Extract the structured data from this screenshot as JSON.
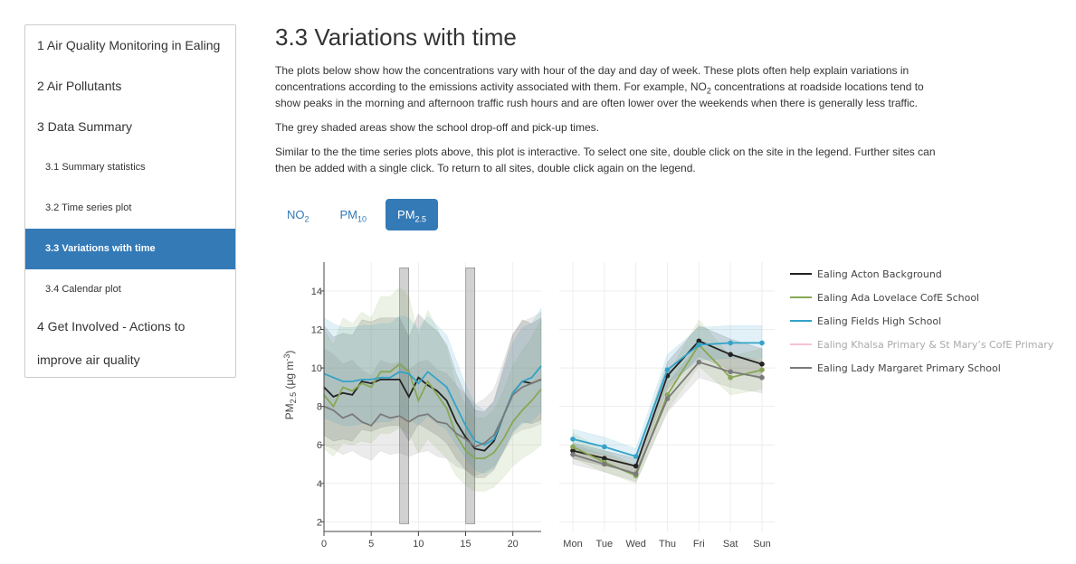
{
  "toc": [
    {
      "label": "1 Air Quality Monitoring in Ealing",
      "level": 1
    },
    {
      "label": "2 Air Pollutants",
      "level": 1
    },
    {
      "label": "3 Data Summary",
      "level": 1
    },
    {
      "label": "3.1 Summary statistics",
      "level": 2
    },
    {
      "label": "3.2 Time series plot",
      "level": 2
    },
    {
      "label": "3.3 Variations with time",
      "level": 2,
      "active": true
    },
    {
      "label": "3.4 Calendar plot",
      "level": 2
    },
    {
      "label": "4 Get Involved - Actions to improve air quality",
      "level": 1
    }
  ],
  "heading": "3.3 Variations with time",
  "para1_a": "The plots below show how the concentrations vary with hour of the day and day of week. These plots often help explain variations in concentrations according to the emissions activity associated with them. For example, NO",
  "para1_sub": "2",
  "para1_b": " concentrations at roadside locations tend to show peaks in the morning and afternoon traffic rush hours and are often lower over the weekends when there is generally less traffic.",
  "para2": "The grey shaded areas show the school drop-off and pick-up times.",
  "para3": "Similar to the the time series plots above, this plot is interactive. To select one site, double click on the site in the legend. Further sites can then be added with a single click. To return to all sites, double click again on the legend.",
  "tabs": [
    {
      "main": "NO",
      "sub": "2",
      "active": false
    },
    {
      "main": "PM",
      "sub": "10",
      "active": false
    },
    {
      "main": "PM",
      "sub": "2.5",
      "active": true
    }
  ],
  "chart_data": {
    "type": "line",
    "ylabel_main": "PM",
    "ylabel_sub": "2.5",
    "ylabel_unit": " (μg m",
    "ylabel_sup": "-3",
    "ylabel_end": ")",
    "ylim": [
      1.5,
      15.5
    ],
    "yticks": [
      2,
      4,
      6,
      8,
      10,
      12,
      14
    ],
    "hour": {
      "xlim": [
        0,
        23
      ],
      "xticks": [
        0,
        5,
        10,
        15,
        20
      ],
      "school_hours": [
        8.5,
        15.5
      ],
      "series": [
        {
          "name": "Ealing Acton Background",
          "color": "#222222",
          "values": [
            9.0,
            8.5,
            8.7,
            8.6,
            9.3,
            9.2,
            9.4,
            9.4,
            9.4,
            8.5,
            9.5,
            9.1,
            8.8,
            8.3,
            7.2,
            6.4,
            5.8,
            5.7,
            6.2,
            7.5,
            8.7,
            9.3,
            9.2,
            9.4
          ],
          "lower": [
            6.5,
            6.2,
            6.3,
            6.2,
            6.8,
            6.7,
            6.9,
            7.0,
            7.0,
            6.2,
            7.1,
            6.8,
            6.5,
            6.1,
            5.3,
            4.7,
            4.3,
            4.3,
            4.7,
            5.7,
            6.7,
            7.2,
            7.1,
            7.3
          ],
          "upper": [
            12.2,
            11.6,
            11.8,
            11.7,
            12.5,
            12.4,
            12.6,
            12.6,
            12.6,
            11.6,
            12.8,
            12.3,
            11.9,
            11.2,
            9.7,
            8.6,
            7.8,
            7.7,
            8.3,
            10.0,
            11.7,
            12.5,
            12.3,
            12.6
          ]
        },
        {
          "name": "Ealing Ada Lovelace CofE School",
          "color": "#88a755",
          "values": [
            8.6,
            8.0,
            9.0,
            8.8,
            9.2,
            9.0,
            9.8,
            9.8,
            10.2,
            9.8,
            8.3,
            9.3,
            8.6,
            7.9,
            6.5,
            5.7,
            5.3,
            5.3,
            5.6,
            6.3,
            7.2,
            7.8,
            8.3,
            8.9
          ],
          "lower": [
            5.8,
            5.4,
            6.1,
            6.0,
            6.2,
            6.1,
            6.6,
            6.6,
            6.9,
            6.6,
            5.6,
            6.3,
            5.8,
            5.3,
            4.4,
            3.9,
            3.6,
            3.6,
            3.8,
            4.3,
            4.9,
            5.3,
            5.6,
            6.0
          ],
          "upper": [
            12.0,
            11.2,
            12.6,
            12.3,
            12.9,
            12.6,
            13.7,
            13.7,
            14.2,
            13.7,
            11.6,
            13.0,
            12.0,
            11.0,
            9.1,
            8.0,
            7.4,
            7.4,
            7.8,
            8.8,
            10.1,
            10.9,
            11.6,
            12.5
          ]
        },
        {
          "name": "Ealing Fields High School",
          "color": "#33a3c8",
          "values": [
            9.7,
            9.5,
            9.3,
            9.3,
            9.4,
            9.4,
            9.5,
            9.5,
            9.8,
            9.7,
            9.2,
            9.8,
            9.4,
            9.0,
            8.0,
            7.0,
            6.2,
            6.0,
            6.3,
            7.5,
            8.7,
            9.3,
            9.5,
            10.1
          ],
          "lower": [
            7.4,
            7.2,
            7.0,
            7.0,
            7.1,
            7.1,
            7.2,
            7.2,
            7.5,
            7.4,
            7.0,
            7.5,
            7.1,
            6.8,
            6.0,
            5.3,
            4.7,
            4.5,
            4.8,
            5.7,
            6.6,
            7.1,
            7.2,
            7.7
          ],
          "upper": [
            12.6,
            12.3,
            12.1,
            12.1,
            12.2,
            12.2,
            12.3,
            12.3,
            12.7,
            12.6,
            12.0,
            12.7,
            12.2,
            11.7,
            10.4,
            9.1,
            8.1,
            7.8,
            8.2,
            9.8,
            11.3,
            12.1,
            12.3,
            13.1
          ]
        },
        {
          "name": "Ealing Lady Margaret Primary School",
          "color": "#7a7a7a",
          "values": [
            8.0,
            7.8,
            7.4,
            7.6,
            7.2,
            7.0,
            7.6,
            7.4,
            7.5,
            7.2,
            7.5,
            7.6,
            7.2,
            7.1,
            6.6,
            6.3,
            5.9,
            6.1,
            6.5,
            7.5,
            8.6,
            9.0,
            9.2,
            9.4
          ],
          "lower": [
            6.0,
            5.8,
            5.5,
            5.7,
            5.4,
            5.2,
            5.7,
            5.5,
            5.6,
            5.4,
            5.6,
            5.7,
            5.4,
            5.3,
            4.9,
            4.7,
            4.4,
            4.6,
            4.9,
            5.6,
            6.5,
            6.8,
            6.9,
            7.1
          ],
          "upper": [
            11.0,
            10.7,
            10.2,
            10.4,
            9.9,
            9.6,
            10.4,
            10.2,
            10.3,
            9.9,
            10.3,
            10.4,
            9.9,
            9.7,
            9.1,
            8.6,
            8.1,
            8.4,
            8.9,
            10.3,
            11.8,
            12.4,
            12.6,
            12.9
          ]
        }
      ]
    },
    "weekday": {
      "categories": [
        "Mon",
        "Tue",
        "Wed",
        "Thu",
        "Fri",
        "Sat",
        "Sun"
      ],
      "series": [
        {
          "name": "Ealing Acton Background",
          "color": "#222222",
          "values": [
            5.7,
            5.3,
            4.9,
            9.6,
            11.4,
            10.7,
            10.2
          ],
          "lower": [
            5.3,
            4.9,
            4.6,
            8.9,
            10.6,
            9.9,
            9.4
          ],
          "upper": [
            6.1,
            5.7,
            5.3,
            10.3,
            12.2,
            11.5,
            11.0
          ]
        },
        {
          "name": "Ealing Ada Lovelace CofE School",
          "color": "#88a755",
          "values": [
            5.9,
            5.1,
            4.4,
            8.6,
            11.2,
            9.5,
            9.9
          ],
          "lower": [
            5.3,
            4.6,
            4.0,
            7.8,
            10.1,
            8.6,
            8.9
          ],
          "upper": [
            6.6,
            5.7,
            4.9,
            9.6,
            12.5,
            10.6,
            11.0
          ]
        },
        {
          "name": "Ealing Fields High School",
          "color": "#33a3c8",
          "values": [
            6.3,
            5.9,
            5.4,
            9.9,
            11.2,
            11.3,
            11.3
          ],
          "lower": [
            5.8,
            5.5,
            5.0,
            9.2,
            10.4,
            10.5,
            10.5
          ],
          "upper": [
            6.8,
            6.4,
            5.8,
            10.7,
            12.1,
            12.2,
            12.2
          ]
        },
        {
          "name": "Ealing Lady Margaret Primary School",
          "color": "#7a7a7a",
          "values": [
            5.5,
            5.0,
            4.5,
            8.4,
            10.3,
            9.8,
            9.5
          ],
          "lower": [
            5.0,
            4.6,
            4.1,
            7.7,
            9.5,
            9.0,
            8.7
          ],
          "upper": [
            6.0,
            5.5,
            4.9,
            9.2,
            11.2,
            10.7,
            10.4
          ]
        }
      ]
    },
    "legend": [
      {
        "name": "Ealing Acton Background",
        "color": "#222222",
        "visible": true
      },
      {
        "name": "Ealing Ada Lovelace CofE School",
        "color": "#88a755",
        "visible": true
      },
      {
        "name": "Ealing Fields High School",
        "color": "#33a3c8",
        "visible": true
      },
      {
        "name": "Ealing Khalsa Primary & St Mary’s CofE Primary",
        "color": "#f4a7c3",
        "visible": false
      },
      {
        "name": "Ealing Lady Margaret Primary School",
        "color": "#7a7a7a",
        "visible": true
      }
    ]
  }
}
